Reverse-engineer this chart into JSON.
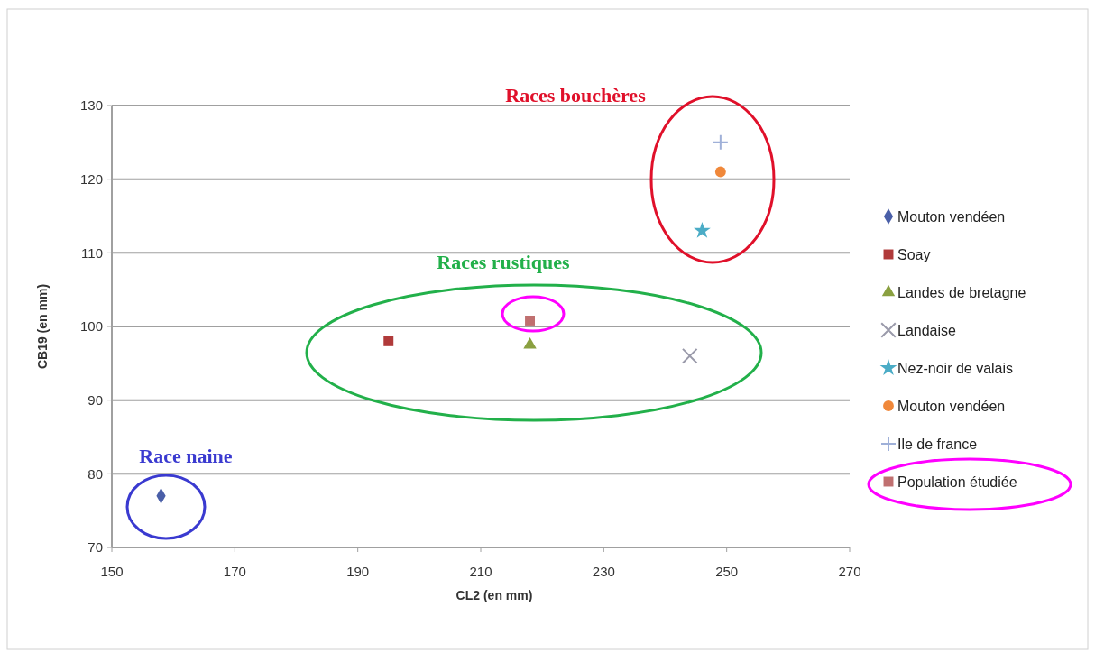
{
  "chart_data": {
    "type": "scatter",
    "xlabel": "CL2 (en mm)",
    "ylabel": "CB19 (en mm)",
    "xlim": [
      150,
      270
    ],
    "xticks": [
      150,
      170,
      190,
      210,
      230,
      250,
      270
    ],
    "ylim": [
      70,
      130
    ],
    "yticks": [
      70,
      80,
      90,
      100,
      110,
      120,
      130
    ],
    "grid": "y",
    "legend": "right",
    "annotations": [
      "Race naine",
      "Races rustiques",
      "Races bouchères"
    ],
    "series": [
      {
        "name": "Mouton vendéen",
        "color": "#4a5fa8",
        "marker": "diamond",
        "x": [
          158
        ],
        "values": [
          77
        ]
      },
      {
        "name": "Soay",
        "color": "#b03a3a",
        "marker": "square",
        "x": [
          195
        ],
        "values": [
          98
        ]
      },
      {
        "name": "Landes de bretagne",
        "color": "#8aa040",
        "marker": "triangle",
        "x": [
          218
        ],
        "values": [
          97.5
        ]
      },
      {
        "name": "Landaise",
        "color": "#9a9aaa",
        "marker": "cross",
        "x": [
          244
        ],
        "values": [
          96
        ]
      },
      {
        "name": "Nez-noir de valais",
        "color": "#4bacc6",
        "marker": "star",
        "x": [
          246
        ],
        "values": [
          113
        ]
      },
      {
        "name": "Mouton vendéen",
        "color": "#f0883a",
        "marker": "circle",
        "x": [
          249
        ],
        "values": [
          121
        ]
      },
      {
        "name": "Ile de france",
        "color": "#9fb0d8",
        "marker": "plus",
        "x": [
          249
        ],
        "values": [
          125
        ]
      },
      {
        "name": "Population étudiée",
        "color": "#c07070",
        "marker": "square",
        "x": [
          218
        ],
        "values": [
          100.8
        ]
      }
    ]
  }
}
